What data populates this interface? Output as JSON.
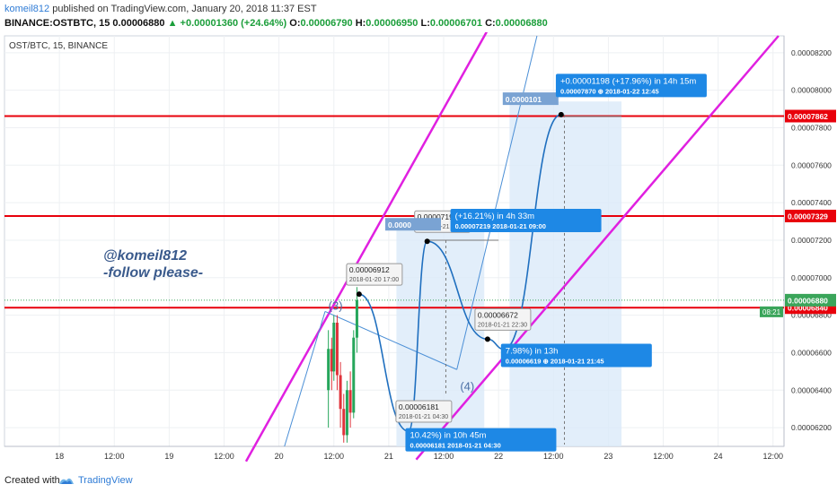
{
  "header": {
    "author": "komeil812",
    "published": "published on TradingView.com, January 20, 2018 11:37 EST",
    "symbol": "BINANCE:OSTBTC, 15",
    "price": "0.00006880",
    "change_arrow": "▲",
    "change": "+0.00001360 (+24.64%)",
    "o_label": "O:",
    "o_value": "0.00006790",
    "h_label": "H:",
    "h_value": "0.00006950",
    "l_label": "L:",
    "l_value": "0.00006701",
    "c_label": "C:",
    "c_value": "0.00006880"
  },
  "footer": {
    "created_with": "Created with",
    "brand": "TradingView"
  },
  "chart_data": {
    "type": "line",
    "title": "OST/BTC, 15, BINANCE",
    "y_range": [
      6.1e-05,
      8.29e-05
    ],
    "y_ticks": [
      "0.00008200",
      "0.00008000",
      "0.00007800",
      "0.00007600",
      "0.00007400",
      "0.00007200",
      "0.00007000",
      "0.00006800",
      "0.00006600",
      "0.00006400",
      "0.00006200"
    ],
    "x_ticks": [
      {
        "label": "18",
        "t": 18.0
      },
      {
        "label": "12:00",
        "t": 18.5
      },
      {
        "label": "19",
        "t": 19.0
      },
      {
        "label": "12:00",
        "t": 19.5
      },
      {
        "label": "20",
        "t": 20.0
      },
      {
        "label": "12:00",
        "t": 20.5
      },
      {
        "label": "21",
        "t": 21.0
      },
      {
        "label": "12:00",
        "t": 21.5
      },
      {
        "label": "22",
        "t": 22.0
      },
      {
        "label": "12:00",
        "t": 22.5
      },
      {
        "label": "23",
        "t": 23.0
      },
      {
        "label": "12:00",
        "t": 23.5
      },
      {
        "label": "24",
        "t": 24.0
      },
      {
        "label": "12:00",
        "t": 24.5
      }
    ],
    "x_range": [
      17.5,
      24.6
    ],
    "horizontal_levels": [
      {
        "value": 7.862e-05,
        "label": "0.00007862",
        "color": "#e8000b"
      },
      {
        "value": 7.329e-05,
        "label": "0.00007329",
        "color": "#e8000b"
      },
      {
        "value": 6.84e-05,
        "label": "0.00006840",
        "color": "#e8000b"
      }
    ],
    "current_price": {
      "value": 6.88e-05,
      "label": "0.00006880",
      "time": "08:21"
    },
    "channel_lines": [
      {
        "p1": {
          "t": 19.7,
          "v": 6.02e-05
        },
        "p2": {
          "t": 21.9,
          "v": 8.32e-05
        },
        "color": "#e020e0"
      },
      {
        "p1": {
          "t": 21.25,
          "v": 6.03e-05
        },
        "p2": {
          "t": 24.55,
          "v": 8.29e-05
        },
        "color": "#e020e0"
      }
    ],
    "projection_path": [
      {
        "t": 20.73,
        "v": 6.912e-05
      },
      {
        "t": 21.18,
        "v": 6.181e-05
      },
      {
        "t": 21.35,
        "v": 7.194e-05
      },
      {
        "t": 21.9,
        "v": 6.672e-05
      },
      {
        "t": 22.05,
        "v": 6.619e-05
      },
      {
        "t": 22.57,
        "v": 7.87e-05
      }
    ],
    "points": [
      {
        "t": 20.73,
        "v": 6.912e-05,
        "label": "0.00006912",
        "date": "2018-01-20 17:00"
      },
      {
        "t": 21.18,
        "v": 6.181e-05,
        "label": "0.00006181",
        "date": "2018-01-21 04:30"
      },
      {
        "t": 21.35,
        "v": 7.194e-05,
        "label": "0.00007194",
        "date": "2018-01-21 08:45"
      },
      {
        "t": 21.9,
        "v": 6.672e-05,
        "label": "0.00006672",
        "date": "2018-01-21 22:30"
      }
    ],
    "measures": [
      {
        "text": "+0.00001198 (+17.96%) in 14h 15m",
        "sub": "0.00007870  ⊕ 2018-01-22  12:45",
        "t": 22.62,
        "v": 8.03e-05
      },
      {
        "text": "(+16.21%) in 4h 33m",
        "sub": "0.00007219  2018-01-21  09:00",
        "t": 21.66,
        "v": 7.31e-05
      },
      {
        "text": "7.98%) in 13h",
        "sub": "0.00006619  ⊕ 2018-01-21  21:45",
        "t": 22.12,
        "v": 6.59e-05
      },
      {
        "text": "10.42%) in 10h 45m",
        "sub": "0.00006181  2018-01-21  04:30",
        "t": 21.25,
        "v": 6.14e-05
      }
    ],
    "hidden_labels": [
      {
        "text": "0.0000",
        "t": 21.05,
        "v": 7.28e-05
      },
      {
        "text": "0.0000101",
        "t": 22.12,
        "v": 7.95e-05
      }
    ],
    "waves": [
      {
        "label": "(3)",
        "t": 20.45,
        "v": 6.83e-05
      },
      {
        "label": "(4)",
        "t": 21.65,
        "v": 6.4e-05
      }
    ],
    "annotation": [
      "@komeil812",
      "-follow please-"
    ]
  }
}
